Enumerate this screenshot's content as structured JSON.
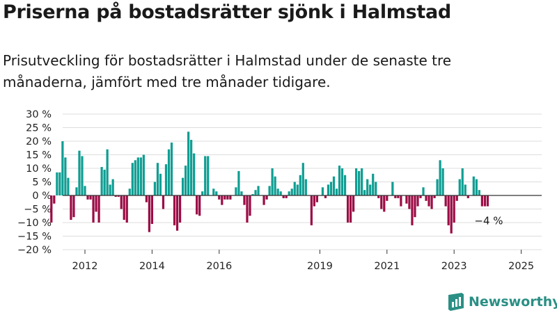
{
  "title": "Priserna på bostadsrätter sjönk i Halmstad",
  "subtitle": "Prisutveckling för bostadsrätter i Halmstad under de senaste tre månaderna, jämfört med tre månader tidigare.",
  "brand": "Newsworthy",
  "colors": {
    "positive": "#0f9e93",
    "negative": "#9b0c45",
    "grid": "#dddddd",
    "axis": "#333333",
    "brand": "#2a8f84"
  },
  "chart_data": {
    "type": "bar",
    "x_start": "2011-01",
    "x_unit": "month",
    "values": [
      -10,
      -3,
      8.5,
      8.5,
      20,
      14,
      6.5,
      -9,
      -8,
      3,
      16.5,
      14.5,
      3.5,
      -1.5,
      -1.5,
      -10,
      -6,
      -10,
      10.5,
      9.5,
      17,
      4,
      6,
      -0.5,
      -0.5,
      -5,
      -9,
      -10,
      2.5,
      12,
      13,
      14,
      14,
      15,
      -2.5,
      -13.5,
      -10.5,
      5,
      12,
      8,
      -5,
      11.5,
      17,
      19.5,
      -11,
      -13,
      -10,
      6.5,
      11,
      23.5,
      20.5,
      15.5,
      -7,
      -7.5,
      1.5,
      14.5,
      14.5,
      0,
      2.5,
      1.5,
      -1.5,
      -3.5,
      -1.5,
      -1.5,
      -1.5,
      0,
      3,
      9,
      1.5,
      -3.5,
      -10,
      -7.5,
      0.5,
      2,
      3.5,
      0,
      -3.5,
      -1.5,
      3.5,
      10,
      7,
      2.5,
      1.5,
      -1,
      -1,
      1.5,
      2.5,
      5,
      4,
      7.5,
      12,
      6,
      0,
      -11,
      -4,
      -2.5,
      0,
      3,
      -1,
      4,
      5,
      7,
      2.5,
      11,
      10,
      7.5,
      -10,
      -10,
      -6,
      10,
      9,
      10,
      2,
      6,
      4,
      8,
      5,
      -1,
      -5,
      -6,
      -2,
      0,
      5,
      -1,
      -1,
      -4,
      0,
      -3,
      -5,
      -11,
      -8,
      -4,
      -1,
      3,
      -2,
      -4,
      -5,
      -1,
      6,
      13,
      10,
      -4,
      -11,
      -14,
      -10,
      -2,
      6,
      10,
      4,
      -1,
      0,
      7,
      6,
      2,
      -4,
      -4,
      -4
    ],
    "annotation": "−4 %",
    "x_ticks": [
      "2012",
      "2014",
      "2016",
      "2019",
      "2021",
      "2023",
      "2025"
    ],
    "y_ticks": [
      "30 %",
      "25 %",
      "20 %",
      "15 %",
      "10 %",
      "5 %",
      "0 %",
      "−5 %",
      "−10 %",
      "−15 %",
      "−20 %"
    ],
    "ylim": [
      -20,
      30
    ],
    "grid": true,
    "xlabel": "",
    "ylabel": ""
  }
}
